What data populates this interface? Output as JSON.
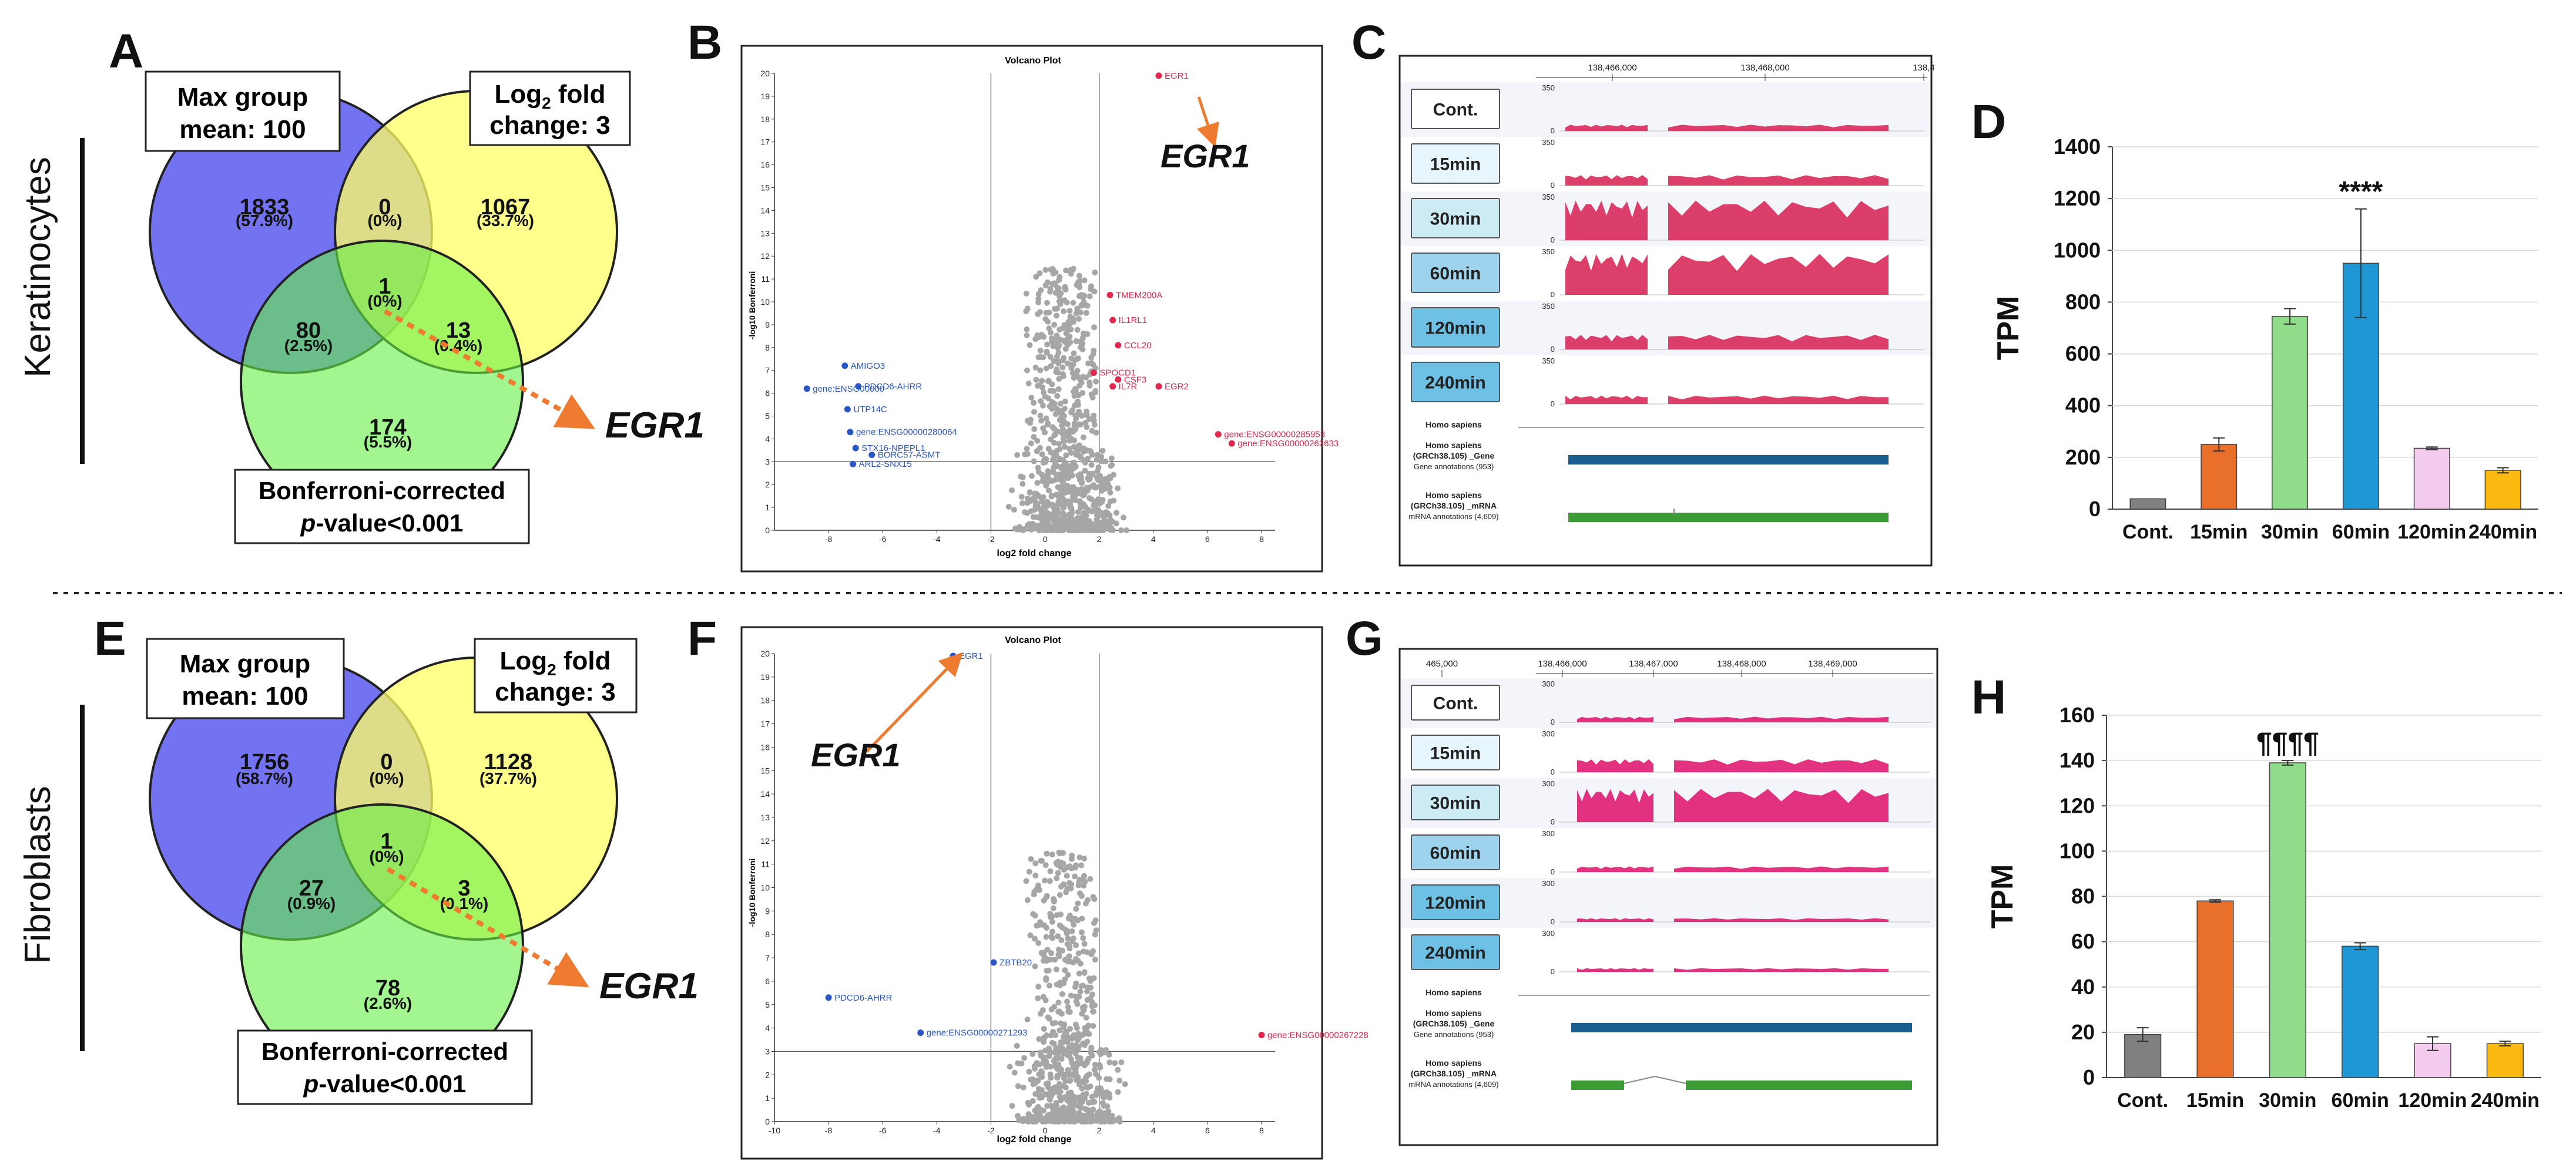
{
  "rows": [
    {
      "row_label": "Keratinocytes",
      "venn": {
        "panel_label": "A",
        "set_labels": {
          "mean_l1": "Max group",
          "mean_l2": "mean: 100",
          "fc_l1": "Log",
          "fc_sub": "2",
          "fc_l1b": " fold",
          "fc_l2": "change: 3",
          "p_l1": "Bonferroni-corrected",
          "p_l2a": "p",
          "p_l2b": "-value<0.001"
        },
        "regions": {
          "only_mean": {
            "count": "1833",
            "pct": "(57.9%)"
          },
          "only_fc": {
            "count": "1067",
            "pct": "(33.7%)"
          },
          "mean_fc": {
            "count": "0",
            "pct": "(0%)"
          },
          "center": {
            "count": "1",
            "pct": "(0%)"
          },
          "mean_p": {
            "count": "80",
            "pct": "(2.5%)"
          },
          "fc_p": {
            "count": "13",
            "pct": "(0.4%)"
          },
          "only_p": {
            "count": "174",
            "pct": "(5.5%)"
          }
        },
        "gene_label": "EGR1"
      },
      "volcano": {
        "panel_label": "B",
        "title": "Volcano Plot",
        "xlabel": "log2 fold change",
        "ylabel": "-log10 Bonferroni",
        "annotation": "EGR1"
      },
      "tracks": {
        "panel_label": "C",
        "coords": [
          "138,466,000",
          "138,468,000",
          "138,4"
        ],
        "max_label": "350",
        "zero_label": "0",
        "track_names": [
          "Cont.",
          "15min",
          "30min",
          "60min",
          "120min",
          "240min"
        ],
        "gene_title": "Homo sapiens",
        "gene_sub": "(GRCh38.105) _Gene",
        "gene_sub2": "Gene annotations (953)",
        "mrna_title": "Homo sapiens",
        "mrna_sub": "(GRCh38.105) _mRNA",
        "mrna_sub2": "mRNA annotations (4,609)"
      },
      "bar": {
        "panel_label": "D",
        "significance": "****"
      }
    },
    {
      "row_label": "Fibroblasts",
      "venn": {
        "panel_label": "E",
        "set_labels": {
          "mean_l1": "Max group",
          "mean_l2": "mean: 100",
          "fc_l1": "Log",
          "fc_sub": "2",
          "fc_l1b": " fold",
          "fc_l2": "change: 3",
          "p_l1": "Bonferroni-corrected",
          "p_l2a": "p",
          "p_l2b": "-value<0.001"
        },
        "regions": {
          "only_mean": {
            "count": "1756",
            "pct": "(58.7%)"
          },
          "only_fc": {
            "count": "1128",
            "pct": "(37.7%)"
          },
          "mean_fc": {
            "count": "0",
            "pct": "(0%)"
          },
          "center": {
            "count": "1",
            "pct": "(0%)"
          },
          "mean_p": {
            "count": "27",
            "pct": "(0.9%)"
          },
          "fc_p": {
            "count": "3",
            "pct": "(0.1%)"
          },
          "only_p": {
            "count": "78",
            "pct": "(2.6%)"
          }
        },
        "gene_label": "EGR1"
      },
      "volcano": {
        "panel_label": "F",
        "title": "Volcano Plot",
        "xlabel": "log2 fold change",
        "ylabel": "-log10 Bonferroni",
        "annotation": "EGR1"
      },
      "tracks": {
        "panel_label": "G",
        "coords": [
          "465,000",
          "138,466,000",
          "138,467,000",
          "138,468,000",
          "138,469,000"
        ],
        "max_label": "300",
        "zero_label": "0",
        "track_names": [
          "Cont.",
          "15min",
          "30min",
          "60min",
          "120min",
          "240min"
        ],
        "gene_title": "Homo sapiens",
        "gene_sub": "(GRCh38.105) _Gene",
        "gene_sub2": "Gene annotations (953)",
        "mrna_title": "Homo sapiens",
        "mrna_sub": "(GRCh38.105) _mRNA",
        "mrna_sub2": "mRNA annotations (4,609)"
      },
      "bar": {
        "panel_label": "H",
        "significance": "¶¶¶¶"
      }
    }
  ],
  "chart_data": [
    {
      "type": "scatter",
      "panel": "B",
      "title": "Volcano Plot",
      "xlabel": "log2 fold change",
      "ylabel": "-log10 Bonferroni",
      "xlim": [
        -10,
        8.5
      ],
      "ylim": [
        0,
        20
      ],
      "xticks": [
        -8,
        -6,
        -4,
        -2,
        0,
        2,
        4,
        6,
        8
      ],
      "yticks": [
        0,
        1,
        2,
        3,
        4,
        5,
        6,
        7,
        8,
        9,
        10,
        11,
        12,
        13,
        14,
        15,
        16,
        17,
        18,
        19,
        20
      ],
      "threshold_x": [
        -2,
        2
      ],
      "threshold_y": 3,
      "series": [
        {
          "name": "down",
          "color": "#2a55c4",
          "points": [
            {
              "x": -7.4,
              "y": 7.2,
              "label": "AMIGO3"
            },
            {
              "x": -8.8,
              "y": 6.2,
              "label": "gene:ENSG00000"
            },
            {
              "x": -6.9,
              "y": 6.3,
              "label": "PDCD6-AHRR"
            },
            {
              "x": -7.3,
              "y": 5.3,
              "label": "UTP14C"
            },
            {
              "x": -7.2,
              "y": 4.3,
              "label": "gene:ENSG00000280064"
            },
            {
              "x": -7.0,
              "y": 3.6,
              "label": "STX16-NPEPL1"
            },
            {
              "x": -6.4,
              "y": 3.3,
              "label": "BORC57-ASMT"
            },
            {
              "x": -7.1,
              "y": 2.9,
              "label": "ARL2-SNX15"
            }
          ]
        },
        {
          "name": "up",
          "color": "#e0284e",
          "points": [
            {
              "x": 2.4,
              "y": 10.3,
              "label": "TMEM200A"
            },
            {
              "x": 2.5,
              "y": 9.2,
              "label": "IL1RL1"
            },
            {
              "x": 2.7,
              "y": 8.1,
              "label": "CCL20"
            },
            {
              "x": 1.8,
              "y": 6.9,
              "label": "SPOCD1"
            },
            {
              "x": 2.7,
              "y": 6.6,
              "label": "CSF3"
            },
            {
              "x": 2.5,
              "y": 6.3,
              "label": "IL7R"
            },
            {
              "x": 4.2,
              "y": 6.3,
              "label": "EGR2"
            },
            {
              "x": 6.4,
              "y": 4.2,
              "label": "gene:ENSG00000285953"
            },
            {
              "x": 6.9,
              "y": 3.8,
              "label": "gene:ENSG00000262633"
            },
            {
              "x": 4.2,
              "y": 19.9,
              "label": "EGR1"
            }
          ]
        }
      ]
    },
    {
      "type": "scatter",
      "panel": "F",
      "title": "Volcano Plot",
      "xlabel": "log2 fold change",
      "ylabel": "-log10 Bonferroni",
      "xlim": [
        -10,
        8.5
      ],
      "ylim": [
        0,
        20
      ],
      "xticks": [
        -10,
        -8,
        -6,
        -4,
        -2,
        0,
        2,
        4,
        6,
        8
      ],
      "yticks": [
        0,
        1,
        2,
        3,
        4,
        5,
        6,
        7,
        8,
        9,
        10,
        11,
        12,
        13,
        14,
        15,
        16,
        17,
        18,
        19,
        20
      ],
      "threshold_x": [
        -2,
        2
      ],
      "threshold_y": 3,
      "series": [
        {
          "name": "down",
          "color": "#2a55c4",
          "points": [
            {
              "x": -3.4,
              "y": 19.9,
              "label": "EGR1"
            },
            {
              "x": -1.9,
              "y": 6.8,
              "label": "ZBTB20"
            },
            {
              "x": -8.0,
              "y": 5.3,
              "label": "PDCD6-AHRR"
            },
            {
              "x": -4.6,
              "y": 3.8,
              "label": "gene:ENSG00000271293"
            }
          ]
        },
        {
          "name": "up",
          "color": "#e0284e",
          "points": [
            {
              "x": 8.0,
              "y": 3.7,
              "label": "gene:ENSG00000267228"
            }
          ]
        }
      ]
    },
    {
      "type": "bar",
      "panel": "D",
      "categories": [
        "Cont.",
        "15min",
        "30min",
        "60min",
        "120min",
        "240min"
      ],
      "values": [
        40,
        250,
        745,
        950,
        235,
        150
      ],
      "errors": [
        0,
        25,
        30,
        210,
        5,
        10
      ],
      "colors": [
        "#808080",
        "#e8702a",
        "#8fdc8a",
        "#1f97d4",
        "#f2cbee",
        "#fbb911"
      ],
      "ylabel": "TPM",
      "ylim": [
        0,
        1400
      ],
      "yticks": [
        0,
        200,
        400,
        600,
        800,
        1000,
        1200,
        1400
      ],
      "annotation": {
        "category": "60min",
        "text": "****"
      }
    },
    {
      "type": "bar",
      "panel": "H",
      "categories": [
        "Cont.",
        "15min",
        "30min",
        "60min",
        "120min",
        "240min"
      ],
      "values": [
        19,
        78,
        139,
        58,
        15,
        15
      ],
      "errors": [
        3,
        0.5,
        1,
        1.5,
        3,
        1
      ],
      "colors": [
        "#808080",
        "#e8702a",
        "#8fdc8a",
        "#1f97d4",
        "#f2cbee",
        "#fbb911"
      ],
      "ylabel": "TPM",
      "ylim": [
        0,
        160
      ],
      "yticks": [
        0,
        20,
        40,
        60,
        80,
        100,
        120,
        140,
        160
      ],
      "annotation": {
        "category": "30min",
        "text": "¶¶¶¶"
      }
    }
  ]
}
